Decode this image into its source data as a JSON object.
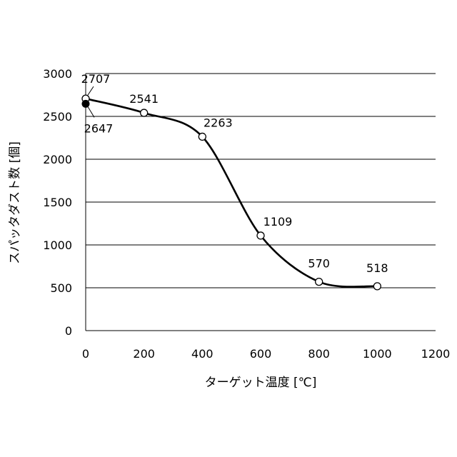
{
  "chart_data": {
    "type": "line",
    "title": "",
    "xlabel": "ターゲット温度 [℃]",
    "ylabel": "スパッタダスト数 [個]",
    "xlim": [
      0,
      1200
    ],
    "ylim": [
      0,
      3000
    ],
    "x_ticks": [
      "0",
      "200",
      "400",
      "600",
      "800",
      "1000",
      "1200"
    ],
    "y_ticks": [
      "0",
      "500",
      "1000",
      "1500",
      "2000",
      "2500",
      "3000"
    ],
    "grid": "horizontal",
    "series": [
      {
        "marker": "open-circle",
        "color": "#000000",
        "points": [
          {
            "x": 0,
            "y": 2707,
            "label": "2707"
          },
          {
            "x": 200,
            "y": 2541,
            "label": "2541"
          },
          {
            "x": 400,
            "y": 2263,
            "label": "2263"
          },
          {
            "x": 600,
            "y": 1109,
            "label": "1109"
          },
          {
            "x": 800,
            "y": 570,
            "label": "570"
          },
          {
            "x": 1000,
            "y": 518,
            "label": "518"
          }
        ]
      },
      {
        "marker": "filled-circle",
        "color": "#000000",
        "points": [
          {
            "x": 0,
            "y": 2647,
            "label": "2647"
          }
        ]
      }
    ]
  }
}
